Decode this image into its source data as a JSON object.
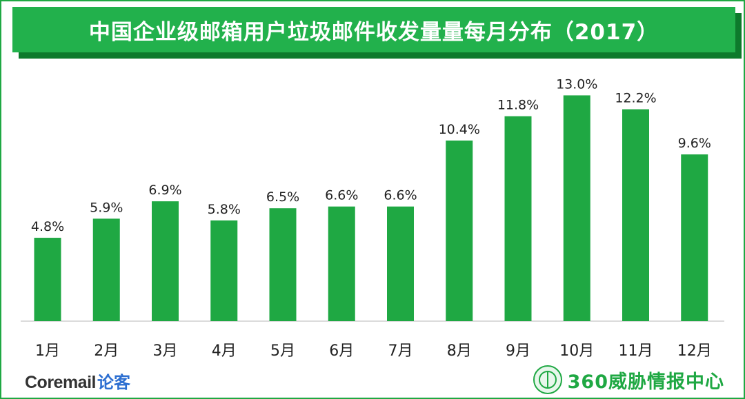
{
  "title": "中国企业级邮箱用户垃圾邮件收发量量每月分布（2017）",
  "chart_data": {
    "type": "bar",
    "title": "中国企业级邮箱用户垃圾邮件收发量量每月分布（2017）",
    "categories": [
      "1月",
      "2月",
      "3月",
      "4月",
      "5月",
      "6月",
      "7月",
      "8月",
      "9月",
      "10月",
      "11月",
      "12月"
    ],
    "values": [
      4.8,
      5.9,
      6.9,
      5.8,
      6.5,
      6.6,
      6.6,
      10.4,
      11.8,
      13.0,
      12.2,
      9.6
    ],
    "value_labels": [
      "4.8%",
      "5.9%",
      "6.9%",
      "5.8%",
      "6.5%",
      "6.6%",
      "6.6%",
      "10.4%",
      "11.8%",
      "13.0%",
      "12.2%",
      "9.6%"
    ],
    "unit": "%",
    "ylim": [
      0,
      14
    ],
    "grid": false,
    "bar_color": "#1fa843"
  },
  "logos": {
    "left_brand": "Coremail",
    "left_sub": "论客",
    "right_name": "360威胁情报中心"
  },
  "colors": {
    "accent": "#22b14c",
    "frame": "#1fa843",
    "title_shadow": "#0d7a2c"
  }
}
